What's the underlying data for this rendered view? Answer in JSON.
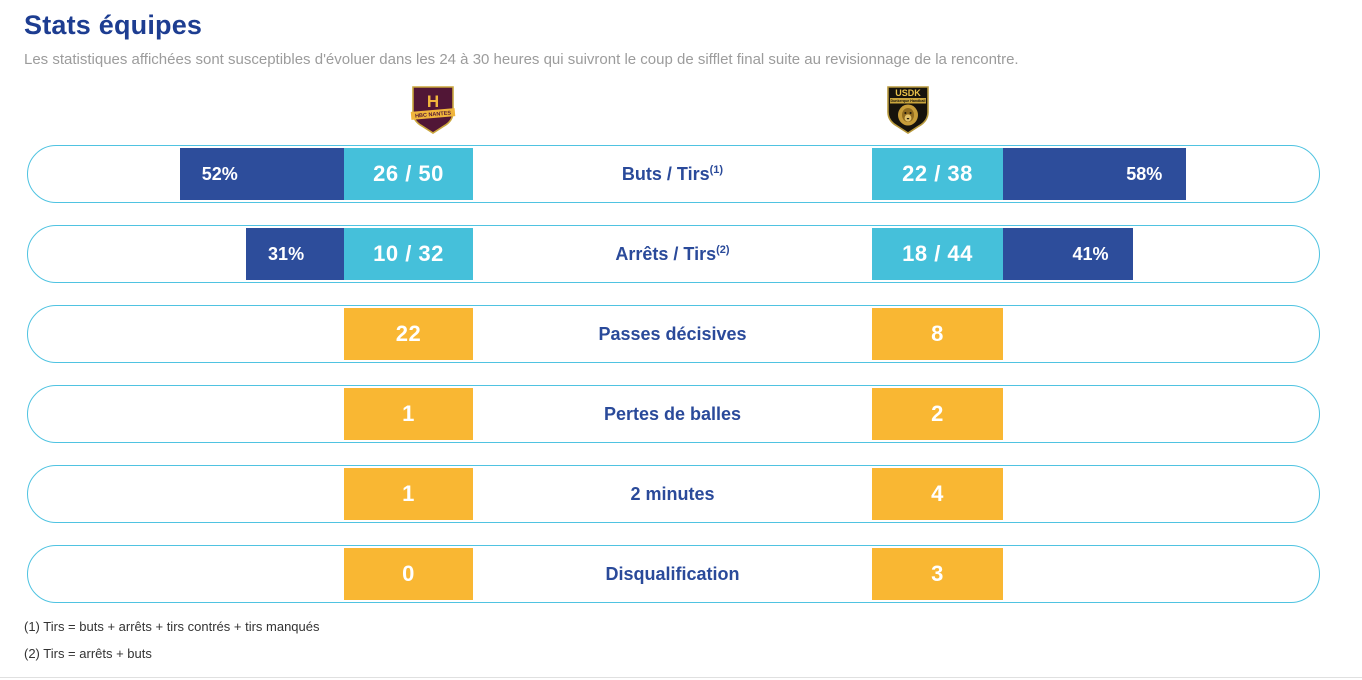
{
  "header": {
    "title": "Stats équipes",
    "subtitle": "Les statistiques affichées sont susceptibles d'évoluer dans les 24 à 30 heures qui suivront le coup de sifflet final suite au revisionnage de la rencontre."
  },
  "teams": {
    "home": {
      "name": "HBC Nantes",
      "letter": "H",
      "banner": "HBC NANTES"
    },
    "away": {
      "name": "USDK Dunkerque",
      "abbr": "USDK",
      "banner": "Dunkerque Handball"
    }
  },
  "chart_data": {
    "type": "bar",
    "title": "Stats équipes",
    "orientation": "horizontal-mirrored",
    "categories": [
      "Buts / Tirs",
      "Arrêts / Tirs",
      "Passes décisives",
      "Pertes de balles",
      "2 minutes",
      "Disqualification"
    ],
    "category_superscripts": [
      "(1)",
      "(2)",
      "",
      "",
      "",
      ""
    ],
    "series": [
      {
        "name": "HBC Nantes",
        "side": "home",
        "values": [
          "26 / 50",
          "10 / 32",
          "22",
          "1",
          "1",
          "0"
        ],
        "bar_percent": [
          52,
          31,
          null,
          null,
          null,
          null
        ]
      },
      {
        "name": "USDK Dunkerque",
        "side": "away",
        "values": [
          "22 / 38",
          "18 / 44",
          "8",
          "2",
          "4",
          "3"
        ],
        "bar_percent": [
          58,
          41,
          null,
          null,
          null,
          null
        ]
      }
    ],
    "bar_range": [
      0,
      100
    ],
    "legend_position": "top-logos",
    "grid": false
  },
  "footnotes": [
    "(1) Tirs = buts + arrêts + tirs contrés + tirs manqués",
    "(2) Tirs = arrêts + buts"
  ],
  "colors": {
    "title": "#1d3d91",
    "navy-bar": "#2d4d9b",
    "navy-text": "#2a4a9a",
    "cyan": "#45c0da",
    "pill-border": "#4fc3e1",
    "yellow": "#f9b733",
    "gray": "#9c9c9c",
    "home-shield": "#511636",
    "home-gold": "#f0b53c",
    "away-shield": "#16130c",
    "away-gold": "#d7b148"
  }
}
